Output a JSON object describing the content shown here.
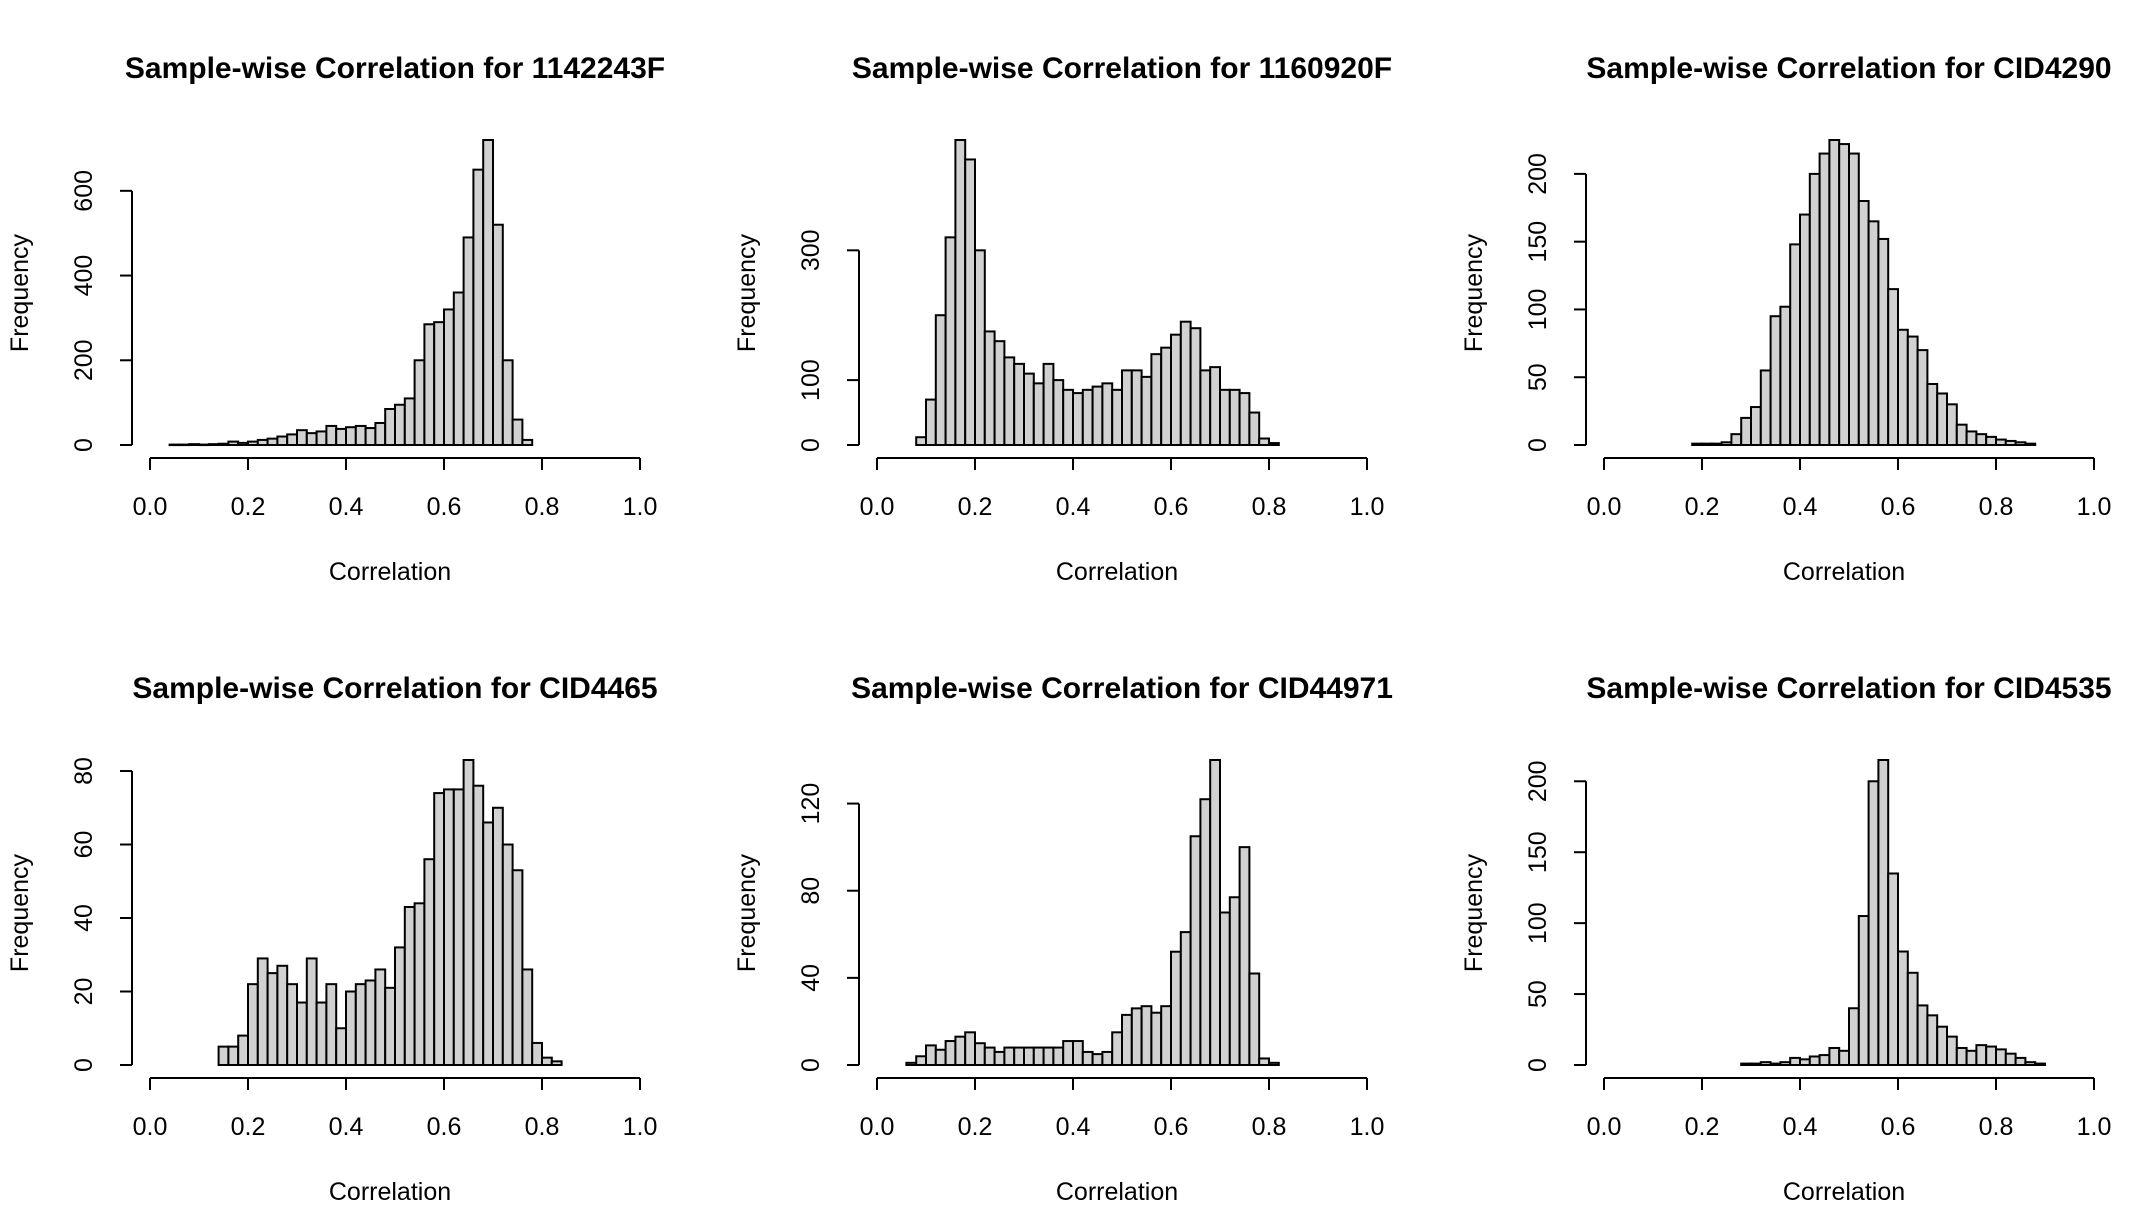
{
  "chart_data": [
    {
      "type": "bar",
      "title": "Sample-wise Correlation for 1142243F",
      "xlabel": "Correlation",
      "ylabel": "Frequency",
      "xlim": [
        0,
        1
      ],
      "ylim": [
        0,
        720
      ],
      "xticks": [
        "0.0",
        "0.2",
        "0.4",
        "0.6",
        "0.8",
        "1.0"
      ],
      "yticks": [
        "0",
        "200",
        "400",
        "600"
      ],
      "ytick_values": [
        0,
        200,
        400,
        600
      ],
      "bin_start": 0.04,
      "bin_width": 0.02,
      "values": [
        1,
        1,
        2,
        1,
        2,
        3,
        8,
        5,
        8,
        12,
        15,
        20,
        25,
        35,
        28,
        32,
        45,
        38,
        42,
        45,
        40,
        52,
        85,
        95,
        110,
        200,
        285,
        290,
        320,
        360,
        490,
        650,
        720,
        520,
        200,
        60,
        12
      ]
    },
    {
      "type": "bar",
      "title": "Sample-wise Correlation for 1160920F",
      "xlabel": "Correlation",
      "ylabel": "Frequency",
      "xlim": [
        0,
        1
      ],
      "ylim": [
        0,
        470
      ],
      "xticks": [
        "0.0",
        "0.2",
        "0.4",
        "0.6",
        "0.8",
        "1.0"
      ],
      "yticks": [
        "0",
        "100",
        "300"
      ],
      "ytick_values": [
        0,
        100,
        300
      ],
      "bin_start": 0.08,
      "bin_width": 0.02,
      "values": [
        12,
        70,
        200,
        320,
        470,
        440,
        300,
        175,
        160,
        135,
        125,
        110,
        95,
        125,
        100,
        85,
        80,
        85,
        90,
        95,
        85,
        115,
        115,
        105,
        140,
        150,
        170,
        190,
        180,
        115,
        120,
        85,
        85,
        80,
        50,
        10,
        3
      ]
    },
    {
      "type": "bar",
      "title": "Sample-wise Correlation for CID4290",
      "xlabel": "Correlation",
      "ylabel": "Frequency",
      "xlim": [
        0,
        1
      ],
      "ylim": [
        0,
        225
      ],
      "xticks": [
        "0.0",
        "0.2",
        "0.4",
        "0.6",
        "0.8",
        "1.0"
      ],
      "yticks": [
        "0",
        "50",
        "100",
        "150",
        "200"
      ],
      "ytick_values": [
        0,
        50,
        100,
        150,
        200
      ],
      "bin_start": 0.18,
      "bin_width": 0.02,
      "values": [
        1,
        1,
        1,
        2,
        8,
        20,
        28,
        55,
        95,
        102,
        148,
        170,
        200,
        215,
        225,
        222,
        215,
        180,
        165,
        152,
        115,
        85,
        80,
        70,
        45,
        38,
        30,
        15,
        10,
        8,
        6,
        4,
        3,
        2,
        1
      ]
    },
    {
      "type": "bar",
      "title": "Sample-wise Correlation for CID4465",
      "xlabel": "Correlation",
      "ylabel": "Frequency",
      "xlim": [
        0,
        1
      ],
      "ylim": [
        0,
        83
      ],
      "xticks": [
        "0.0",
        "0.2",
        "0.4",
        "0.6",
        "0.8",
        "1.0"
      ],
      "yticks": [
        "0",
        "20",
        "40",
        "60",
        "80"
      ],
      "ytick_values": [
        0,
        20,
        40,
        60,
        80
      ],
      "bin_start": 0.14,
      "bin_width": 0.02,
      "values": [
        5,
        5,
        8,
        22,
        29,
        25,
        27,
        22,
        17,
        29,
        17,
        22,
        10,
        20,
        22,
        23,
        26,
        21,
        32,
        43,
        44,
        56,
        74,
        75,
        75,
        83,
        76,
        66,
        70,
        60,
        53,
        26,
        6,
        2,
        1
      ]
    },
    {
      "type": "bar",
      "title": "Sample-wise Correlation for CID44971",
      "xlabel": "Correlation",
      "ylabel": "Frequency",
      "xlim": [
        0,
        1
      ],
      "ylim": [
        0,
        140
      ],
      "xticks": [
        "0.0",
        "0.2",
        "0.4",
        "0.6",
        "0.8",
        "1.0"
      ],
      "yticks": [
        "0",
        "40",
        "80",
        "120"
      ],
      "ytick_values": [
        0,
        40,
        80,
        120
      ],
      "bin_start": 0.06,
      "bin_width": 0.02,
      "values": [
        1,
        4,
        9,
        7,
        11,
        13,
        15,
        10,
        8,
        6,
        8,
        8,
        8,
        8,
        8,
        8,
        11,
        11,
        6,
        5,
        6,
        15,
        23,
        26,
        27,
        24,
        27,
        52,
        61,
        105,
        122,
        140,
        70,
        77,
        100,
        42,
        3,
        1
      ]
    },
    {
      "type": "bar",
      "title": "Sample-wise Correlation for CID4535",
      "xlabel": "Correlation",
      "ylabel": "Frequency",
      "xlim": [
        0,
        1
      ],
      "ylim": [
        0,
        215
      ],
      "xticks": [
        "0.0",
        "0.2",
        "0.4",
        "0.6",
        "0.8",
        "1.0"
      ],
      "yticks": [
        "0",
        "50",
        "100",
        "150",
        "200"
      ],
      "ytick_values": [
        0,
        50,
        100,
        150,
        200
      ],
      "bin_start": 0.28,
      "bin_width": 0.02,
      "values": [
        1,
        1,
        2,
        1,
        2,
        5,
        4,
        6,
        7,
        12,
        10,
        40,
        105,
        200,
        215,
        135,
        80,
        65,
        42,
        35,
        27,
        20,
        12,
        10,
        14,
        13,
        11,
        8,
        5,
        2,
        1
      ]
    }
  ]
}
